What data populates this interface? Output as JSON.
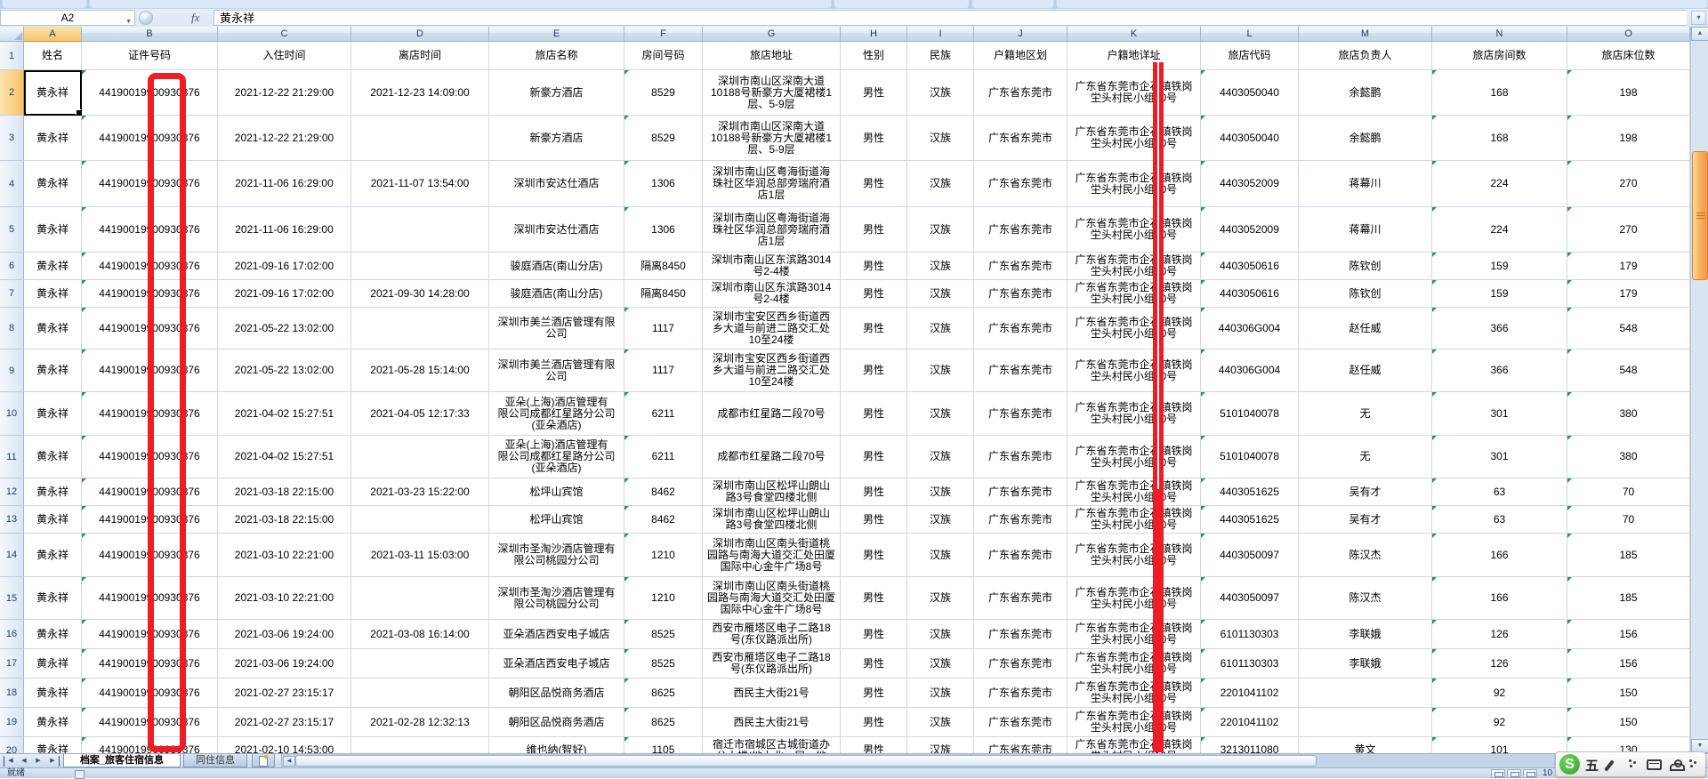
{
  "formula_bar": {
    "name_box": "A2",
    "fx": "fx",
    "value": "黄永祥",
    "expand_icon": "▾"
  },
  "grid": {
    "selected_cell": "A2",
    "column_letters": [
      "A",
      "B",
      "C",
      "D",
      "E",
      "F",
      "G",
      "H",
      "I",
      "J",
      "K",
      "L",
      "M",
      "N",
      "O"
    ],
    "header_row": [
      "姓名",
      "证件号码",
      "入住时间",
      "离店时间",
      "旅店名称",
      "房间号码",
      "旅店地址",
      "性别",
      "民族",
      "户籍地区划",
      "户籍地详址",
      "旅店代码",
      "旅店负责人",
      "旅店房间数",
      "旅店床位数"
    ],
    "rows": [
      {
        "n": 2,
        "cells": [
          "黄永祥",
          "44190019900930376",
          "2021-12-22 21:29:00",
          "2021-12-23 14:09:00",
          "新豪方酒店",
          "8529",
          "深圳市南山区深南大道\n10188号新豪方大厦裙楼1\n层、5-9层",
          "男性",
          "汉族",
          "广东省东莞市",
          "广东省东莞市企石镇铁岗\n坣头村民小组10号",
          "4403050040",
          "余懿鹏",
          "168",
          "198"
        ]
      },
      {
        "n": 3,
        "cells": [
          "黄永祥",
          "44190019900930376",
          "2021-12-22 21:29:00",
          "",
          "新豪方酒店",
          "8529",
          "深圳市南山区深南大道\n10188号新豪方大厦裙楼1\n层、5-9层",
          "男性",
          "汉族",
          "广东省东莞市",
          "广东省东莞市企石镇铁岗\n坣头村民小组10号",
          "4403050040",
          "余懿鹏",
          "168",
          "198"
        ]
      },
      {
        "n": 4,
        "cells": [
          "黄永祥",
          "44190019900930376",
          "2021-11-06 16:29:00",
          "2021-11-07 13:54:00",
          "深圳市安达仕酒店",
          "1306",
          "深圳市南山区粤海街道海\n珠社区华润总部旁瑞府酒\n店1层",
          "男性",
          "汉族",
          "广东省东莞市",
          "广东省东莞市企石镇铁岗\n坣头村民小组10号",
          "4403052009",
          "蒋幕川",
          "224",
          "270"
        ]
      },
      {
        "n": 5,
        "cells": [
          "黄永祥",
          "44190019900930376",
          "2021-11-06 16:29:00",
          "",
          "深圳市安达仕酒店",
          "1306",
          "深圳市南山区粤海街道海\n珠社区华润总部旁瑞府酒\n店1层",
          "男性",
          "汉族",
          "广东省东莞市",
          "广东省东莞市企石镇铁岗\n坣头村民小组10号",
          "4403052009",
          "蒋幕川",
          "224",
          "270"
        ]
      },
      {
        "n": 6,
        "cells": [
          "黄永祥",
          "44190019900930376",
          "2021-09-16 17:02:00",
          "",
          "骏庭酒店(南山分店)",
          "隔离8450",
          "深圳市南山区东滨路3014\n号2-4楼",
          "男性",
          "汉族",
          "广东省东莞市",
          "广东省东莞市企石镇铁岗\n坣头村民小组10号",
          "4403050616",
          "陈钦创",
          "159",
          "179"
        ]
      },
      {
        "n": 7,
        "cells": [
          "黄永祥",
          "44190019900930376",
          "2021-09-16 17:02:00",
          "2021-09-30 14:28:00",
          "骏庭酒店(南山分店)",
          "隔离8450",
          "深圳市南山区东滨路3014\n号2-4楼",
          "男性",
          "汉族",
          "广东省东莞市",
          "广东省东莞市企石镇铁岗\n坣头村民小组10号",
          "4403050616",
          "陈钦创",
          "159",
          "179"
        ]
      },
      {
        "n": 8,
        "cells": [
          "黄永祥",
          "44190019900930376",
          "2021-05-22 13:02:00",
          "",
          "深圳市美兰酒店管理有限\n公司",
          "1117",
          "深圳市宝安区西乡街道西\n乡大道与前进二路交汇处\n10至24楼",
          "男性",
          "汉族",
          "广东省东莞市",
          "广东省东莞市企石镇铁岗\n坣头村民小组10号",
          "440306G004",
          "赵任威",
          "366",
          "548"
        ]
      },
      {
        "n": 9,
        "cells": [
          "黄永祥",
          "44190019900930376",
          "2021-05-22 13:02:00",
          "2021-05-28 15:14:00",
          "深圳市美兰酒店管理有限\n公司",
          "1117",
          "深圳市宝安区西乡街道西\n乡大道与前进二路交汇处\n10至24楼",
          "男性",
          "汉族",
          "广东省东莞市",
          "广东省东莞市企石镇铁岗\n坣头村民小组10号",
          "440306G004",
          "赵任威",
          "366",
          "548"
        ]
      },
      {
        "n": 10,
        "cells": [
          "黄永祥",
          "44190019900930376",
          "2021-04-02 15:27:51",
          "2021-04-05 12:17:33",
          "亚朵(上海)酒店管理有\n限公司成都红星路分公司\n(亚朵酒店)",
          "6211",
          "成都市红星路二段70号",
          "男性",
          "汉族",
          "广东省东莞市",
          "广东省东莞市企石镇铁岗\n坣头村民小组10号",
          "5101040078",
          "无",
          "301",
          "380"
        ]
      },
      {
        "n": 11,
        "cells": [
          "黄永祥",
          "44190019900930376",
          "2021-04-02 15:27:51",
          "",
          "亚朵(上海)酒店管理有\n限公司成都红星路分公司\n(亚朵酒店)",
          "6211",
          "成都市红星路二段70号",
          "男性",
          "汉族",
          "广东省东莞市",
          "广东省东莞市企石镇铁岗\n坣头村民小组10号",
          "5101040078",
          "无",
          "301",
          "380"
        ]
      },
      {
        "n": 12,
        "cells": [
          "黄永祥",
          "44190019900930376",
          "2021-03-18 22:15:00",
          "2021-03-23 15:22:00",
          "松坪山宾馆",
          "8462",
          "深圳市南山区松坪山朗山\n路3号食堂四楼北侧",
          "男性",
          "汉族",
          "广东省东莞市",
          "广东省东莞市企石镇铁岗\n坣头村民小组10号",
          "4403051625",
          "吴有才",
          "63",
          "70"
        ]
      },
      {
        "n": 13,
        "cells": [
          "黄永祥",
          "44190019900930376",
          "2021-03-18 22:15:00",
          "",
          "松坪山宾馆",
          "8462",
          "深圳市南山区松坪山朗山\n路3号食堂四楼北侧",
          "男性",
          "汉族",
          "广东省东莞市",
          "广东省东莞市企石镇铁岗\n坣头村民小组10号",
          "4403051625",
          "吴有才",
          "63",
          "70"
        ]
      },
      {
        "n": 14,
        "cells": [
          "黄永祥",
          "44190019900930376",
          "2021-03-10 22:21:00",
          "2021-03-11 15:03:00",
          "深圳市圣淘沙酒店管理有\n限公司桃园分公司",
          "1210",
          "深圳市南山区南头街道桃\n园路与南海大道交汇处田厦\n国际中心金牛广场8号",
          "男性",
          "汉族",
          "广东省东莞市",
          "广东省东莞市企石镇铁岗\n坣头村民小组10号",
          "4403050097",
          "陈汉杰",
          "166",
          "185"
        ]
      },
      {
        "n": 15,
        "cells": [
          "黄永祥",
          "44190019900930376",
          "2021-03-10 22:21:00",
          "",
          "深圳市圣淘沙酒店管理有\n限公司桃园分公司",
          "1210",
          "深圳市南山区南头街道桃\n园路与南海大道交汇处田厦\n国际中心金牛广场8号",
          "男性",
          "汉族",
          "广东省东莞市",
          "广东省东莞市企石镇铁岗\n坣头村民小组10号",
          "4403050097",
          "陈汉杰",
          "166",
          "185"
        ]
      },
      {
        "n": 16,
        "cells": [
          "黄永祥",
          "44190019900930376",
          "2021-03-06 19:24:00",
          "2021-03-08 16:14:00",
          "亚朵酒店西安电子城店",
          "8525",
          "西安市雁塔区电子二路18\n号(东仪路派出所)",
          "男性",
          "汉族",
          "广东省东莞市",
          "广东省东莞市企石镇铁岗\n坣头村民小组10号",
          "6101130303",
          "李联娥",
          "126",
          "156"
        ]
      },
      {
        "n": 17,
        "cells": [
          "黄永祥",
          "44190019900930376",
          "2021-03-06 19:24:00",
          "",
          "亚朵酒店西安电子城店",
          "8525",
          "西安市雁塔区电子二路18\n号(东仪路派出所)",
          "男性",
          "汉族",
          "广东省东莞市",
          "广东省东莞市企石镇铁岗\n坣头村民小组10号",
          "6101130303",
          "李联娥",
          "126",
          "156"
        ]
      },
      {
        "n": 18,
        "cells": [
          "黄永祥",
          "44190019900930376",
          "2021-02-27 23:15:17",
          "",
          "朝阳区品悦商务酒店",
          "8625",
          "西民主大街21号",
          "男性",
          "汉族",
          "广东省东莞市",
          "广东省东莞市企石镇铁岗\n坣头村民小组10号",
          "2201041102",
          "",
          "92",
          "150"
        ]
      },
      {
        "n": 19,
        "cells": [
          "黄永祥",
          "44190019900930376",
          "2021-02-27 23:15:17",
          "2021-02-28 12:32:13",
          "朝阳区品悦商务酒店",
          "8625",
          "西民主大街21号",
          "男性",
          "汉族",
          "广东省东莞市",
          "广东省东莞市企石镇铁岗\n坣头村民小组10号",
          "2201041102",
          "",
          "92",
          "150"
        ]
      },
      {
        "n": 20,
        "cells": [
          "黄永祥",
          "44190019900930376",
          "2021-02-10 14:53:00",
          "",
          "维也纳(智好)",
          "1105",
          "宿迁市宿城区古城街道办\n公大楼(地上北一层、地",
          "男性",
          "汉族",
          "广东省东莞市",
          "广东省东莞市企石镇铁岗\n坣头村民小组10号",
          "3213011080",
          "黄文",
          "101",
          "130"
        ]
      }
    ]
  },
  "tabs": {
    "sheets": [
      {
        "label": "档案_旅客住宿信息",
        "active": true
      },
      {
        "label": "同住信息",
        "active": false
      }
    ],
    "nav_first": "◀",
    "nav_prev": "◀",
    "nav_next": "▶",
    "nav_last": "▶",
    "hscroll_left": "◀",
    "hscroll_right": "▶"
  },
  "status_bar": {
    "ready": "就绪",
    "zoom": "10"
  },
  "ime": {
    "logo": "S",
    "mode": "五"
  },
  "annotations": {
    "highlight_color": "#ee1c24",
    "error_indicator_color": "#21a038"
  },
  "scrollbar": {
    "up": "▲",
    "down": "▼"
  }
}
